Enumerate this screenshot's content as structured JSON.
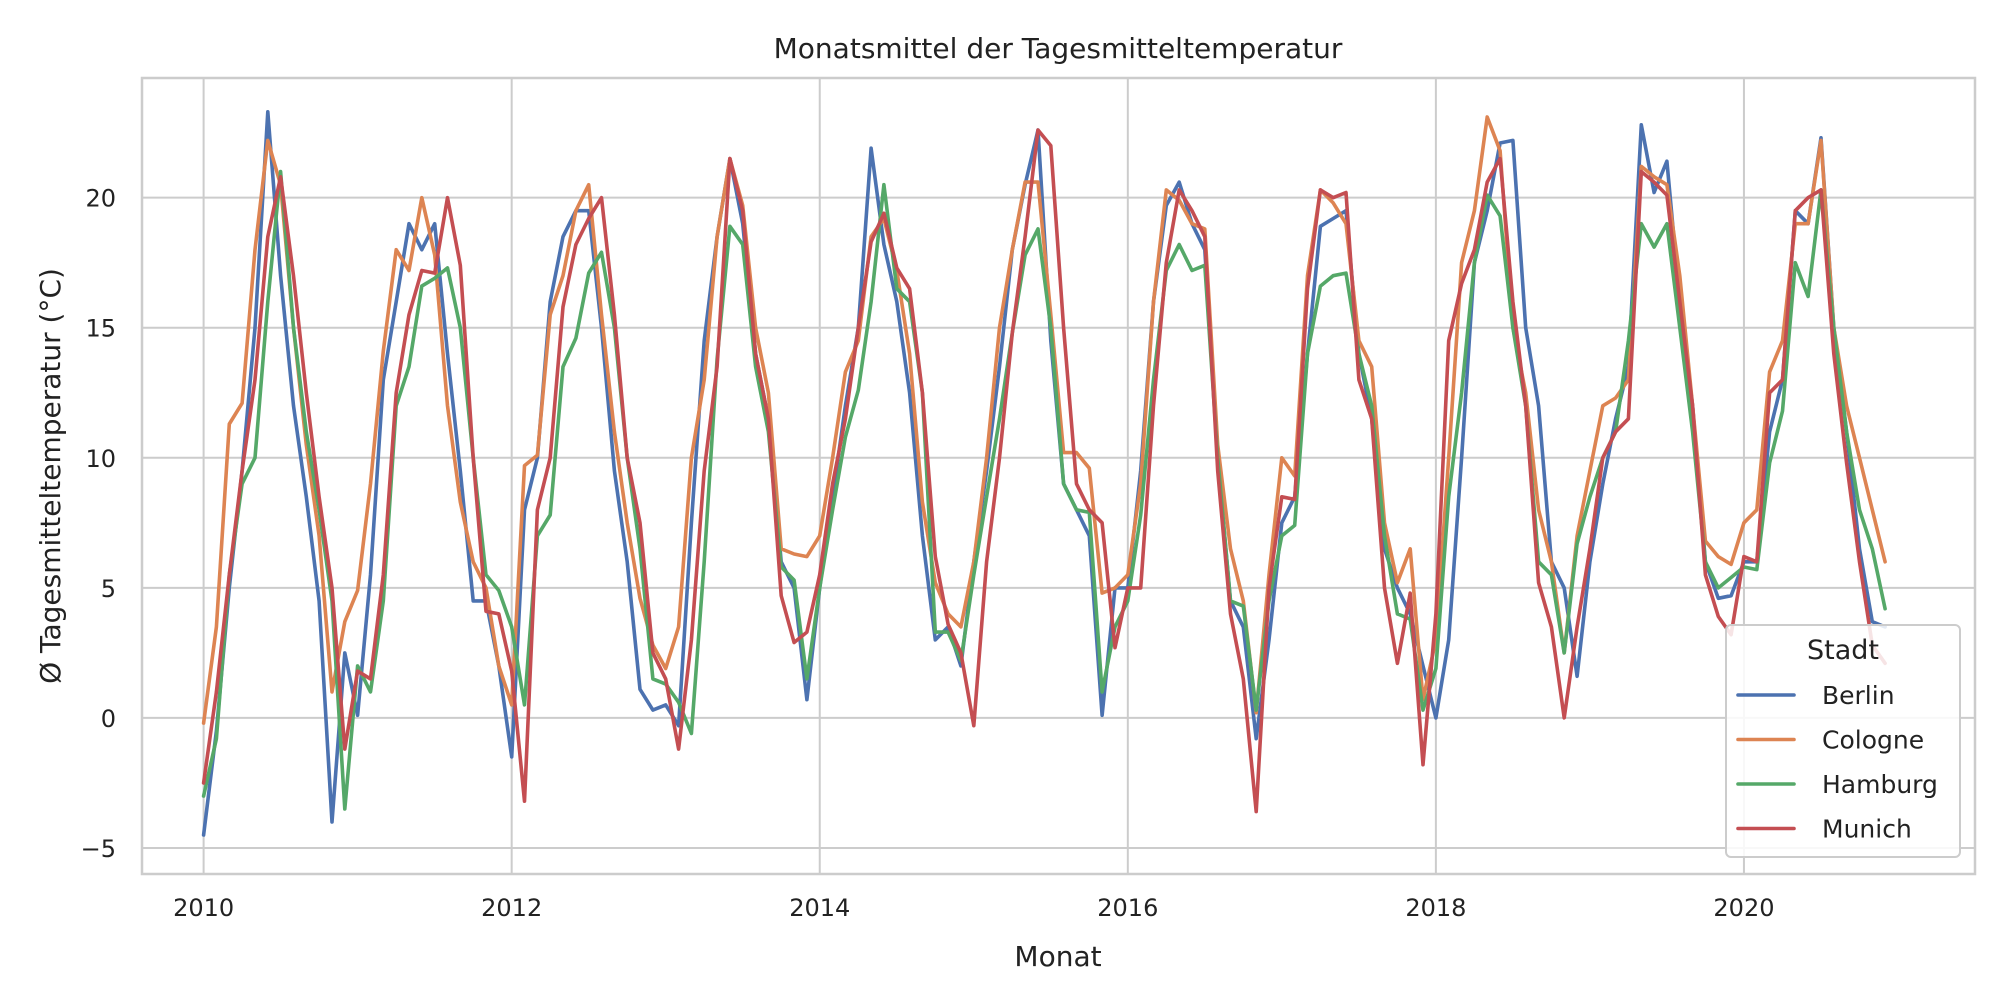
{
  "chart_data": {
    "type": "line",
    "title": "Monatsmittel der Tagesmitteltemperatur",
    "xlabel": "Monat",
    "ylabel": "Ø Tagesmitteltemperatur (°C)",
    "xlim": [
      2009.6,
      2021.5
    ],
    "ylim": [
      -6,
      24.6
    ],
    "xticks": [
      2010,
      2012,
      2014,
      2016,
      2018,
      2020
    ],
    "yticks": [
      -5,
      0,
      5,
      10,
      15,
      20
    ],
    "ytick_labels": [
      "−5",
      "0",
      "5",
      "10",
      "15",
      "20"
    ],
    "grid": true,
    "legend": {
      "title": "Stadt",
      "position": "lower-right"
    },
    "x_start": "2010-01",
    "x_step": "1 month",
    "series": [
      {
        "name": "Berlin",
        "color": "#4c72b0",
        "values": [
          -4.5,
          -0.5,
          5,
          9.5,
          15,
          23.3,
          17,
          12,
          8.5,
          4.5,
          -4,
          2.5,
          0.1,
          5.5,
          13,
          16,
          19,
          18,
          19,
          14,
          9.5,
          4.5,
          4.5,
          2,
          -1.5,
          8,
          10,
          16,
          18.5,
          19.5,
          19.5,
          15,
          9.5,
          6,
          1.1,
          0.3,
          0.5,
          -0.3,
          7.5,
          14.5,
          18.5,
          21.5,
          19,
          14,
          11.5,
          6,
          5,
          0.7,
          5,
          8.5,
          12,
          15,
          21.9,
          18.2,
          16,
          12.5,
          7,
          3,
          3.5,
          2,
          6,
          9.5,
          13.5,
          18,
          20.5,
          22.6,
          14.5,
          9,
          8,
          7,
          0.1,
          5,
          5,
          9.5,
          16,
          19.7,
          20.6,
          19,
          18,
          10,
          4.5,
          3.5,
          -0.8,
          3,
          7.5,
          8.5,
          14,
          18.9,
          19.2,
          19.5,
          14,
          11.5,
          6.5,
          5,
          4,
          2,
          0,
          3,
          10,
          17.5,
          19.5,
          22.1,
          22.2,
          15,
          12,
          6,
          5,
          1.6,
          6,
          9,
          11.5,
          13.5,
          22.8,
          20.2,
          21.4,
          16,
          12,
          6,
          4.6,
          4.7,
          6,
          6,
          11,
          13,
          19.5,
          19,
          22.3,
          15,
          11,
          6.5,
          3.7,
          3.5
        ]
      },
      {
        "name": "Cologne",
        "color": "#dd8452",
        "values": [
          -0.2,
          3.5,
          11.3,
          12.1,
          18,
          22.2,
          20.5,
          15,
          10.5,
          7,
          1,
          3.7,
          4.9,
          9,
          14.1,
          18,
          17.2,
          20,
          17.8,
          12,
          8.3,
          6,
          5,
          2,
          0.5,
          9.7,
          10.1,
          15.5,
          17,
          19.5,
          20.5,
          15.5,
          11,
          7.5,
          4.6,
          2.8,
          1.9,
          3.5,
          10,
          13,
          18.5,
          21.5,
          19.7,
          15,
          12.5,
          6.5,
          6.3,
          6.2,
          7,
          10,
          13.3,
          14.5,
          18.5,
          19.2,
          17.2,
          14,
          8.3,
          5.2,
          4,
          3.5,
          6,
          10,
          15,
          18,
          20.6,
          20.6,
          15.5,
          10.2,
          10.2,
          9.6,
          4.8,
          5,
          5.5,
          9,
          16,
          20.3,
          19.9,
          19,
          18.8,
          10.5,
          6.5,
          4.5,
          0.2,
          5.5,
          10,
          9.3,
          17,
          20.3,
          19.8,
          19,
          14.5,
          13.5,
          7.5,
          5.2,
          6.5,
          0.7,
          3,
          10,
          17.5,
          19.5,
          23.1,
          21.8,
          15,
          12.5,
          8,
          6,
          2.5,
          7,
          9.5,
          12,
          12.3,
          13,
          21.2,
          20.8,
          20.5,
          17,
          12,
          6.8,
          6.2,
          5.9,
          7.5,
          8,
          13.3,
          14.5,
          19,
          19,
          22.2,
          15,
          12,
          10,
          8,
          6
        ]
      },
      {
        "name": "Hamburg",
        "color": "#55a868",
        "values": [
          -3,
          -0.8,
          5.5,
          9,
          10,
          16,
          21,
          15,
          11,
          8,
          4.5,
          -3.5,
          2,
          1,
          4.5,
          12,
          13.5,
          16.6,
          16.9,
          17.3,
          15,
          10,
          5.5,
          4.9,
          3.5,
          0.5,
          7,
          7.8,
          13.5,
          14.6,
          17.1,
          17.9,
          15,
          10,
          6.5,
          1.5,
          1.3,
          0.6,
          -0.6,
          6,
          13.8,
          18.9,
          18.2,
          13.5,
          11,
          5.8,
          5.3,
          1.5,
          5,
          8,
          10.8,
          12.6,
          16,
          20.5,
          16.5,
          16,
          12.5,
          3.3,
          3.3,
          2.2,
          5.5,
          8.5,
          11.5,
          14.8,
          17.8,
          18.8,
          15,
          9,
          8,
          7.9,
          1,
          3.5,
          4.5,
          7.8,
          13,
          17.2,
          18.2,
          17.2,
          17.4,
          10,
          4.5,
          4.3,
          0.3,
          4.5,
          7,
          7.4,
          14,
          16.6,
          17,
          17.1,
          14,
          12,
          7,
          4,
          3.8,
          0.3,
          1.9,
          8.5,
          12.5,
          17.5,
          20.1,
          19.3,
          15,
          12,
          6,
          5.5,
          2.5,
          6.7,
          8.5,
          10,
          11,
          14.5,
          19,
          18.1,
          19,
          15,
          11,
          6,
          5,
          5.4,
          5.8,
          5.7,
          9.8,
          11.8,
          17.5,
          16.2,
          20.3,
          15,
          11,
          8,
          6.5,
          4.2
        ]
      },
      {
        "name": "Munich",
        "color": "#c44e52",
        "values": [
          -2.5,
          1,
          5.5,
          9.5,
          13,
          18.5,
          20.8,
          17,
          12.5,
          8.5,
          5,
          -1.2,
          1.8,
          1.5,
          5.5,
          12.5,
          15.5,
          17.2,
          17.1,
          20,
          17.4,
          10,
          4.1,
          4,
          1.8,
          -3.2,
          8,
          10,
          15.8,
          18.2,
          19.2,
          20,
          15.5,
          10,
          7.5,
          2.5,
          1.5,
          -1.2,
          3,
          9.5,
          13.5,
          21.5,
          19.5,
          14,
          11.5,
          4.7,
          2.9,
          3.3,
          5.5,
          9,
          11.5,
          15,
          18.3,
          19.4,
          17.3,
          16.5,
          12.5,
          6.2,
          3.6,
          2.5,
          -0.3,
          6,
          10,
          14.8,
          18.5,
          22.6,
          22,
          15,
          9,
          8,
          7.5,
          2.7,
          5,
          5,
          12,
          17.5,
          20.3,
          19.5,
          18.5,
          9.5,
          4,
          1.5,
          -3.6,
          5,
          8.5,
          8.4,
          16.5,
          20.3,
          20,
          20.2,
          13,
          11.5,
          5,
          2.1,
          4.8,
          -1.8,
          4,
          14.5,
          16.7,
          18,
          20.6,
          21.5,
          16,
          12,
          5.2,
          3.5,
          0,
          3.5,
          6.5,
          10,
          11,
          11.5,
          21,
          20.6,
          20.1,
          16,
          12,
          5.5,
          3.9,
          3.2,
          6.2,
          6,
          12.5,
          13,
          19.5,
          20,
          20.3,
          14,
          9.8,
          6,
          2.8,
          2.1
        ]
      }
    ]
  }
}
